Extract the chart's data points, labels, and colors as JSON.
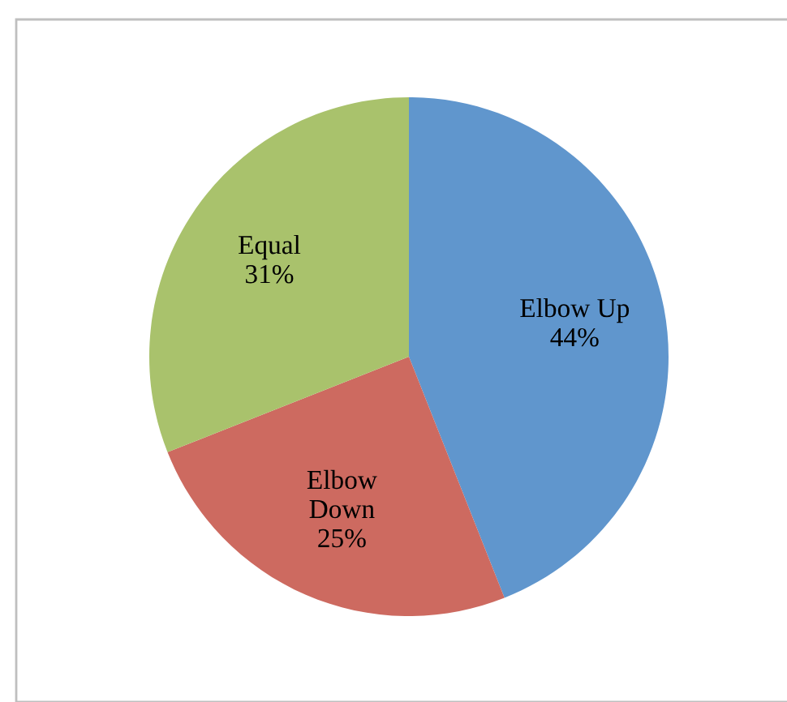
{
  "chart_data": {
    "type": "pie",
    "categories": [
      "Elbow Up",
      "Elbow Down",
      "Equal"
    ],
    "values": [
      44,
      25,
      31
    ],
    "colors": [
      "#6096cd",
      "#cd6a60",
      "#a9c26c"
    ],
    "value_labels": [
      "44%",
      "25%",
      "31%"
    ]
  }
}
